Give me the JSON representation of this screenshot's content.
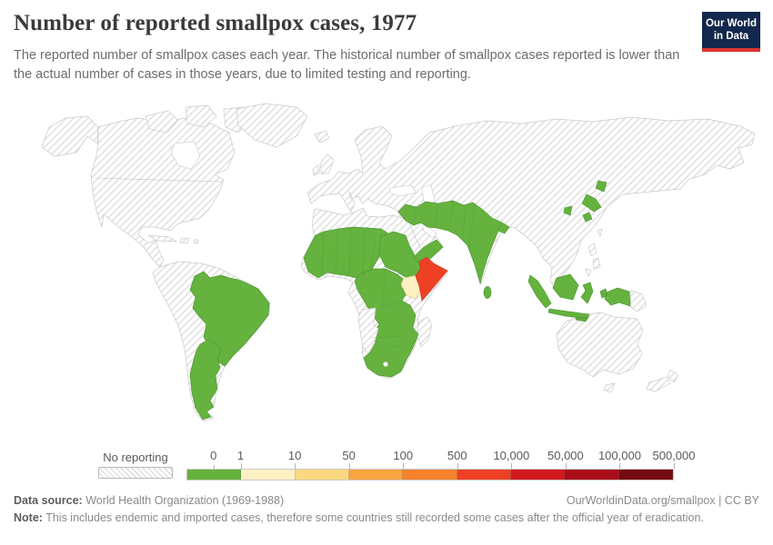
{
  "header": {
    "title": "Number of reported smallpox cases, 1977",
    "subtitle": "The reported number of smallpox cases each year. The historical number of smallpox cases reported is lower than the actual number of cases in those years, due to limited testing and reporting.",
    "logo": {
      "line1": "Our World",
      "line2": "in Data",
      "bg": "#12284c",
      "accent": "#dc3330"
    }
  },
  "chart_data": {
    "type": "choropleth-map",
    "title": "Number of reported smallpox cases, 1977",
    "year": "1977",
    "unit": "reported smallpox cases",
    "legend": {
      "no_data_label": "No reporting",
      "tick_labels": [
        "0",
        "1",
        "10",
        "50",
        "100",
        "500",
        "10,000",
        "50,000",
        "100,000",
        "500,000"
      ],
      "colors": [
        "#65b23e",
        "#fdf0c3",
        "#fbd87f",
        "#f8a43f",
        "#f5812c",
        "#ee4124",
        "#d2191e",
        "#a90e1b",
        "#740a12"
      ],
      "no_data_pattern": "gray diagonal hatching",
      "position": "bottom"
    },
    "regions": [
      {
        "name": "Somalia",
        "bin": "500–10,000",
        "color": "#ee4124"
      },
      {
        "name": "Kenya",
        "bin": "1–10",
        "color": "#fdf0c3"
      },
      {
        "name": "Brazil",
        "bin": "0",
        "color": "#65b23e"
      },
      {
        "name": "Argentina",
        "bin": "0",
        "color": "#65b23e"
      },
      {
        "name": "West Africa (Senegal, Guinea, Sierra Leone, Liberia, Ivory Coast, Ghana, Togo, Benin, Nigeria)",
        "bin": "0",
        "color": "#65b23e"
      },
      {
        "name": "Sahel (Mauritania, Mali, Burkina Faso, Niger, Chad)",
        "bin": "0",
        "color": "#65b23e"
      },
      {
        "name": "Sudan",
        "bin": "0",
        "color": "#65b23e"
      },
      {
        "name": "Ethiopia",
        "bin": "0",
        "color": "#65b23e"
      },
      {
        "name": "Central Africa (Cameroon, Central African Republic, DR Congo, Uganda)",
        "bin": "0",
        "color": "#65b23e"
      },
      {
        "name": "Southern Africa (Tanzania, Zambia, Zimbabwe, Mozambique, Botswana, South Africa)",
        "bin": "0",
        "color": "#65b23e"
      },
      {
        "name": "Yemen and Oman",
        "bin": "0",
        "color": "#65b23e"
      },
      {
        "name": "Middle East (Syria, Iraq, Iran)",
        "bin": "0",
        "color": "#65b23e"
      },
      {
        "name": "Afghanistan",
        "bin": "0",
        "color": "#65b23e"
      },
      {
        "name": "Pakistan",
        "bin": "0",
        "color": "#65b23e"
      },
      {
        "name": "India",
        "bin": "0",
        "color": "#65b23e"
      },
      {
        "name": "Bangladesh",
        "bin": "0",
        "color": "#65b23e"
      },
      {
        "name": "Sri Lanka",
        "bin": "0",
        "color": "#65b23e"
      },
      {
        "name": "Japan",
        "bin": "0",
        "color": "#65b23e"
      },
      {
        "name": "South Korea",
        "bin": "0",
        "color": "#65b23e"
      },
      {
        "name": "Indonesia",
        "bin": "0",
        "color": "#65b23e"
      }
    ],
    "no_reporting_regions": [
      "United States",
      "Canada",
      "Mexico",
      "Central America",
      "Greenland",
      "Europe",
      "Soviet Union",
      "Turkey",
      "Saudi Arabia",
      "North Africa (Morocco, Algeria, Libya, Egypt)",
      "Angola",
      "Namibia",
      "Madagascar",
      "Colombia",
      "Venezuela",
      "Guyanas",
      "Peru",
      "Bolivia",
      "Chile",
      "Paraguay",
      "China",
      "Mongolia",
      "Southeast Asia",
      "Philippines",
      "Australia",
      "Papua New Guinea",
      "New Zealand"
    ]
  },
  "footer": {
    "datasource_label": "Data source:",
    "datasource_text": " World Health Organization (1969-1988)",
    "link": "OurWorldinData.org/smallpox | CC BY",
    "note_label": "Note:",
    "note_text": " This includes endemic and imported cases, therefore some countries still recorded some cases after the official year of eradication."
  }
}
